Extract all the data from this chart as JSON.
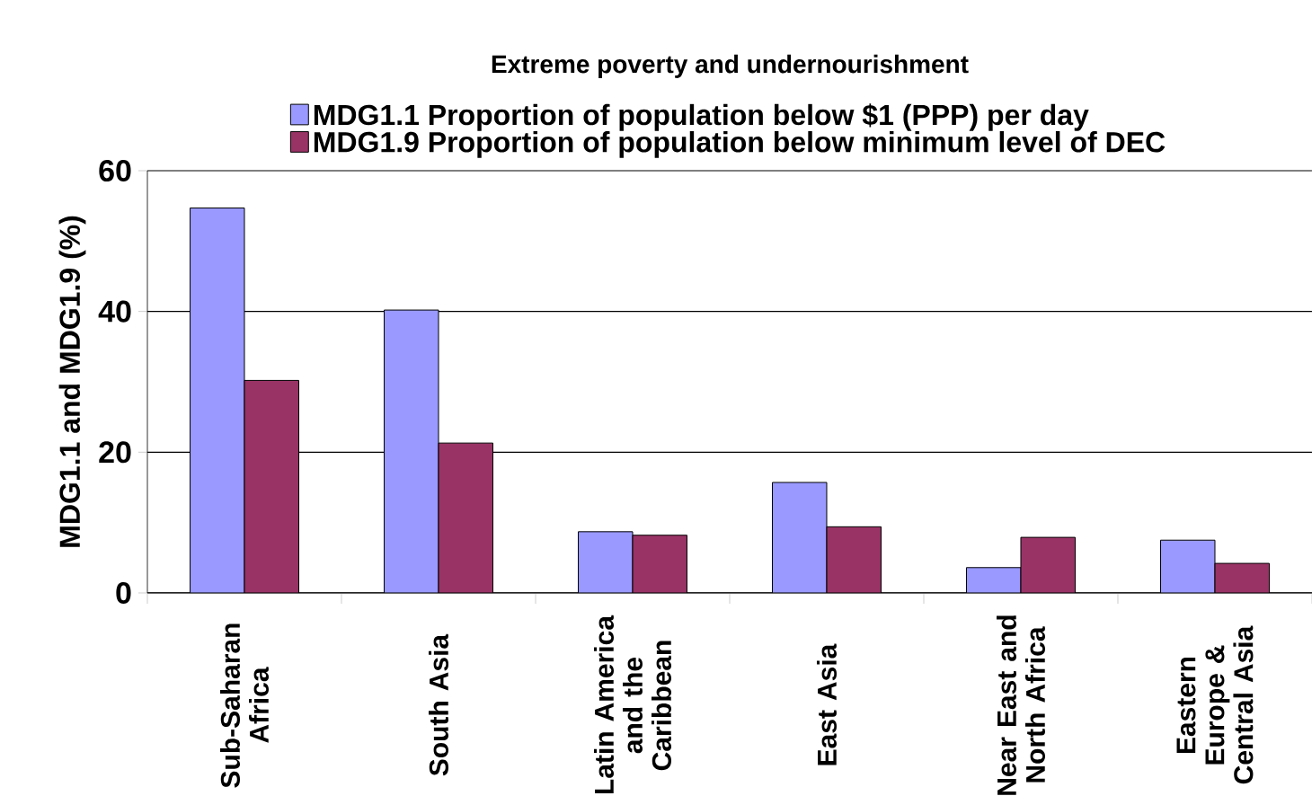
{
  "chart_data": {
    "type": "bar",
    "title": "Extreme poverty and undernourishment",
    "ylabel": "MDG1.1 and MDG1.9 (%)",
    "categories": [
      "Sub-Saharan Africa",
      "South Asia",
      "Latin America and the Caribbean",
      "East Asia",
      "Near East and North Africa",
      "Eastern Europe & Central Asia"
    ],
    "series": [
      {
        "name": "MDG1.1 Proportion of population below $1 (PPP) per day",
        "color": "#9999ff",
        "values": [
          54.7,
          40.2,
          8.7,
          15.7,
          3.6,
          7.5
        ]
      },
      {
        "name": "MDG1.9 Proportion of population below minimum level of DEC",
        "color": "#993366",
        "values": [
          30.2,
          21.3,
          8.2,
          9.4,
          7.9,
          4.2
        ]
      }
    ],
    "ylim": [
      0,
      60
    ],
    "yticks": [
      0,
      20,
      40,
      60
    ],
    "grid": "y",
    "legend": "top"
  }
}
